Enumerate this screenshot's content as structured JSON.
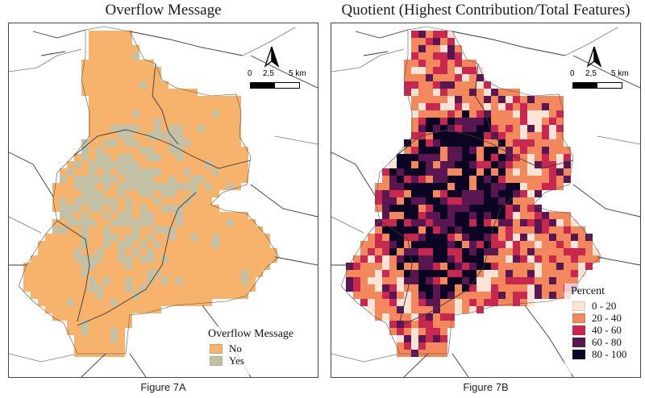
{
  "panels": [
    {
      "title": "Overflow Message",
      "caption": "Figure 7A",
      "scale": {
        "labels": [
          "0",
          "2,5",
          "5 km"
        ]
      },
      "legend": {
        "title": "Overflow Message",
        "items": [
          {
            "label": "No",
            "color": "#f7b36b"
          },
          {
            "label": "Yes",
            "color": "#c2c1a6"
          }
        ]
      }
    },
    {
      "title": "Quotient (Highest Contribution/Total Features)",
      "caption": "Figure 7B",
      "scale": {
        "labels": [
          "0",
          "2,5",
          "5 km"
        ]
      },
      "legend": {
        "title": "Percent",
        "items": [
          {
            "label": "0 - 20",
            "color": "#fbe4d5"
          },
          {
            "label": "20 - 40",
            "color": "#f2885b"
          },
          {
            "label": "40 - 60",
            "color": "#c8274f"
          },
          {
            "label": "60 - 80",
            "color": "#5a1650"
          },
          {
            "label": "80 - 100",
            "color": "#0b0523"
          }
        ]
      }
    }
  ],
  "icons": [
    "north-arrow-icon"
  ]
}
